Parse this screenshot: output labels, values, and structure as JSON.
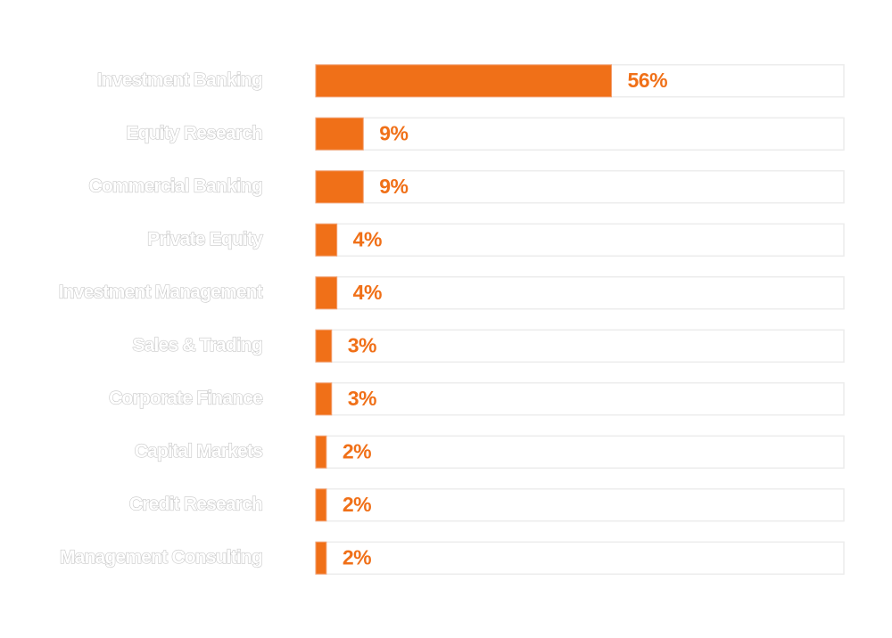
{
  "chart_data": {
    "type": "bar",
    "orientation": "horizontal",
    "categories": [
      "Investment Banking",
      "Equity Research",
      "Commercial Banking",
      "Private Equity",
      "Investment Management",
      "Sales & Trading",
      "Corporate Finance",
      "Capital Markets",
      "Credit Research",
      "Management Consulting"
    ],
    "values": [
      56,
      9,
      9,
      4,
      4,
      3,
      3,
      2,
      2,
      2
    ],
    "value_labels": [
      "56%",
      "9%",
      "9%",
      "4%",
      "4%",
      "3%",
      "3%",
      "2%",
      "2%",
      "2%"
    ],
    "color": "#f07018",
    "xlim": [
      0,
      100
    ]
  }
}
